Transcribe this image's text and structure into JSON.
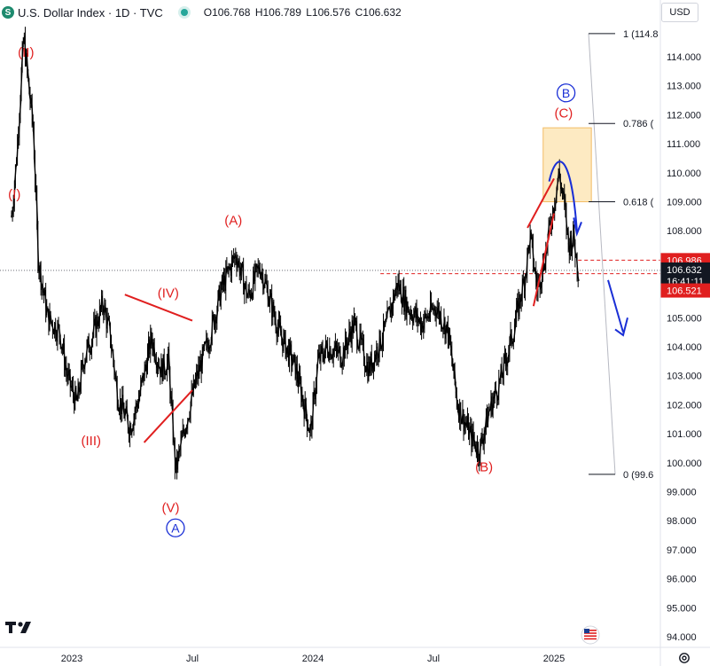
{
  "header": {
    "logo_letter": "S",
    "title": "U.S. Dollar Index · 1D · TVC",
    "ohlc": [
      "O106.768",
      "H106.789",
      "L106.576",
      "C106.632"
    ]
  },
  "toolbar": {
    "currency": "USD"
  },
  "icons": {
    "logo": "tradingview-logo",
    "settings": "gear-icon",
    "flag": "us-flag-icon",
    "status": "market-open-dot"
  },
  "colors": {
    "red": "#e01f1f",
    "blue": "#1a2fd6",
    "candle": "#000000",
    "box_fill": "#fde7b8",
    "box_border": "#f2b14a"
  },
  "chart_data": {
    "type": "candlestick",
    "instrument": "U.S. Dollar Index",
    "interval": "1D",
    "y_axis": {
      "ticks": [
        94,
        95,
        96,
        97,
        98,
        99,
        100,
        101,
        102,
        103,
        104,
        105,
        106,
        107,
        108,
        109,
        110,
        111,
        112,
        113,
        114
      ],
      "tick_labels": [
        "94.000",
        "95.000",
        "96.000",
        "97.000",
        "98.000",
        "99.000",
        "100.000",
        "101.000",
        "102.000",
        "103.000",
        "104.000",
        "105.000",
        "106.000",
        "107.000",
        "108.000",
        "109.000",
        "110.000",
        "111.000",
        "112.000",
        "113.000",
        "114.000"
      ],
      "range": [
        93.5,
        115.3
      ]
    },
    "x_axis": {
      "labels": [
        "2023",
        "Jul",
        "2024",
        "Jul",
        "2025"
      ],
      "label_t": [
        0.0,
        0.5,
        1.0,
        1.5,
        2.0
      ],
      "range_t": [
        -0.25,
        2.32
      ]
    },
    "price_path": [
      [
        -0.25,
        108.5
      ],
      [
        -0.23,
        110.5
      ],
      [
        -0.2,
        114.7
      ],
      [
        -0.18,
        113.0
      ],
      [
        -0.16,
        111.5
      ],
      [
        -0.14,
        107.0
      ],
      [
        -0.1,
        105.0
      ],
      [
        -0.05,
        104.5
      ],
      [
        -0.02,
        103.0
      ],
      [
        0.02,
        102.0
      ],
      [
        0.05,
        103.6
      ],
      [
        0.09,
        104.5
      ],
      [
        0.13,
        105.5
      ],
      [
        0.16,
        104.3
      ],
      [
        0.19,
        102.3
      ],
      [
        0.24,
        101.2
      ],
      [
        0.28,
        102.3
      ],
      [
        0.33,
        104.3
      ],
      [
        0.37,
        103.2
      ],
      [
        0.4,
        103.5
      ],
      [
        0.43,
        99.7
      ],
      [
        0.47,
        101.3
      ],
      [
        0.52,
        103.0
      ],
      [
        0.57,
        104.3
      ],
      [
        0.62,
        106.0
      ],
      [
        0.68,
        107.2
      ],
      [
        0.73,
        105.7
      ],
      [
        0.78,
        106.8
      ],
      [
        0.86,
        104.5
      ],
      [
        0.93,
        103.2
      ],
      [
        0.99,
        101.0
      ],
      [
        1.02,
        103.5
      ],
      [
        1.06,
        104.0
      ],
      [
        1.12,
        103.7
      ],
      [
        1.17,
        104.8
      ],
      [
        1.23,
        103.2
      ],
      [
        1.3,
        104.6
      ],
      [
        1.35,
        106.2
      ],
      [
        1.39,
        105.4
      ],
      [
        1.45,
        104.8
      ],
      [
        1.51,
        105.4
      ],
      [
        1.56,
        104.5
      ],
      [
        1.6,
        102.0
      ],
      [
        1.65,
        101.0
      ],
      [
        1.69,
        100.4
      ],
      [
        1.73,
        101.8
      ],
      [
        1.78,
        102.9
      ],
      [
        1.83,
        104.5
      ],
      [
        1.88,
        106.5
      ],
      [
        1.9,
        107.8
      ],
      [
        1.93,
        106.0
      ],
      [
        1.96,
        107.0
      ],
      [
        1.99,
        108.5
      ],
      [
        2.02,
        110.0
      ],
      [
        2.04,
        109.0
      ],
      [
        2.06,
        107.5
      ],
      [
        2.08,
        107.8
      ],
      [
        2.1,
        106.6
      ]
    ],
    "last_price": "106.632",
    "countdown": "16:41:11",
    "price_lines": [
      {
        "label": "106.986",
        "value": 106.986
      },
      {
        "label": "106.521",
        "value": 106.521
      }
    ],
    "fibonacci": [
      {
        "label": "1 (114.8",
        "value": 114.8
      },
      {
        "label": "0.786 (",
        "value": 111.7
      },
      {
        "label": "0.618 (",
        "value": 109.0
      },
      {
        "label": "0 (99.6",
        "value": 99.6
      }
    ],
    "wave_labels": [
      {
        "text": "(II)",
        "t": -0.19,
        "y": 114.0,
        "color": "red"
      },
      {
        "text": "(I)",
        "t": -0.238,
        "y": 109.1,
        "color": "red"
      },
      {
        "text": "(III)",
        "t": 0.08,
        "y": 100.6,
        "color": "red"
      },
      {
        "text": "(IV)",
        "t": 0.4,
        "y": 105.7,
        "color": "red"
      },
      {
        "text": "(V)",
        "t": 0.41,
        "y": 98.3,
        "color": "red"
      },
      {
        "text": "A",
        "t": 0.43,
        "y": 97.6,
        "color": "blue",
        "circled": true
      },
      {
        "text": "(A)",
        "t": 0.67,
        "y": 108.2,
        "color": "red"
      },
      {
        "text": "(B)",
        "t": 1.71,
        "y": 99.7,
        "color": "red"
      },
      {
        "text": "(C)",
        "t": 2.04,
        "y": 111.9,
        "color": "red"
      },
      {
        "text": "B",
        "t": 2.05,
        "y": 112.6,
        "color": "blue",
        "circled": true
      }
    ]
  }
}
